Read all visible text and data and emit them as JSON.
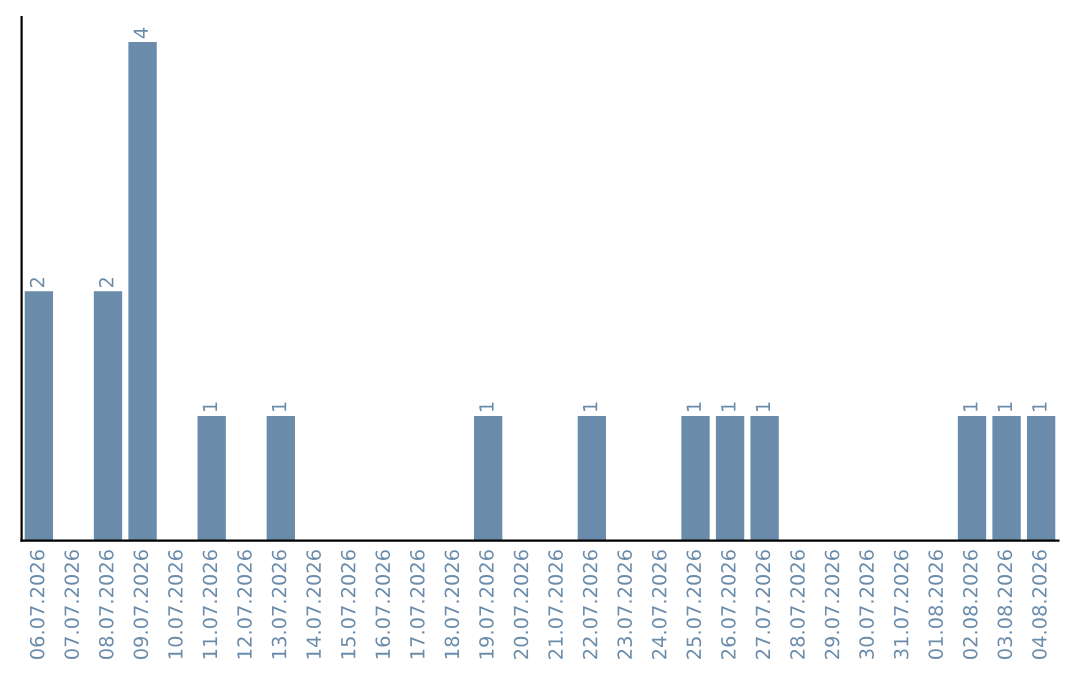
{
  "chart_data": {
    "type": "bar",
    "categories": [
      "06.07.2026",
      "07.07.2026",
      "08.07.2026",
      "09.07.2026",
      "10.07.2026",
      "11.07.2026",
      "12.07.2026",
      "13.07.2026",
      "14.07.2026",
      "15.07.2026",
      "16.07.2026",
      "17.07.2026",
      "18.07.2026",
      "19.07.2026",
      "20.07.2026",
      "21.07.2026",
      "22.07.2026",
      "23.07.2026",
      "24.07.2026",
      "25.07.2026",
      "26.07.2026",
      "27.07.2026",
      "28.07.2026",
      "29.07.2026",
      "30.07.2026",
      "31.07.2026",
      "01.08.2026",
      "02.08.2026",
      "03.08.2026",
      "04.08.2026"
    ],
    "values": [
      2,
      0,
      2,
      4,
      0,
      1,
      0,
      1,
      0,
      0,
      0,
      0,
      0,
      1,
      0,
      0,
      1,
      0,
      0,
      1,
      1,
      1,
      0,
      0,
      0,
      0,
      0,
      1,
      1,
      1
    ],
    "value_labels": [
      "2",
      null,
      "2",
      "4",
      null,
      "1",
      null,
      "1",
      null,
      null,
      null,
      null,
      null,
      "1",
      null,
      null,
      "1",
      null,
      null,
      "1",
      "1",
      "1",
      null,
      null,
      null,
      null,
      null,
      "1",
      "1",
      "1"
    ],
    "color": "#6a8caa",
    "tick_labels": "x",
    "grid": false,
    "legend": false
  }
}
